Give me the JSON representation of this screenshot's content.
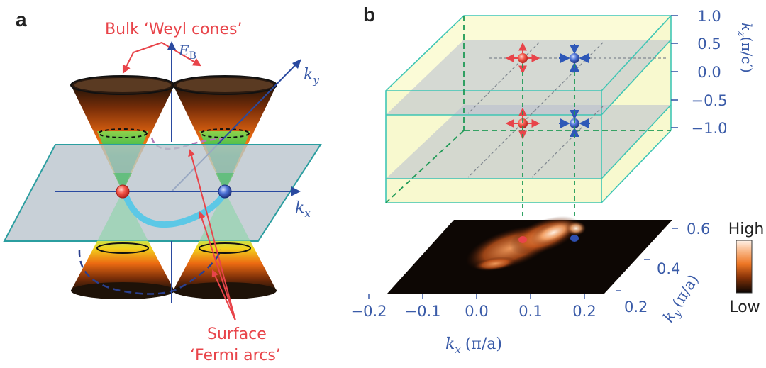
{
  "panels": {
    "a": {
      "label": "a",
      "bulk_label": "Bulk ‘Weyl cones’",
      "energy_axis": {
        "symbol": "E",
        "subscript": "B"
      },
      "ky_axis": {
        "symbol": "k",
        "subscript": "y"
      },
      "kx_axis": {
        "symbol": "k",
        "subscript": "x"
      },
      "surface_label_line1": "Surface",
      "surface_label_line2": "‘Fermi arcs’"
    },
    "b": {
      "label": "b",
      "kz_axis": {
        "title": "k",
        "subscript": "z",
        "unit": "(π/c′)",
        "ticks": [
          "1.0",
          "0.5",
          "0.0",
          "−0.5",
          "−1.0"
        ]
      },
      "kx_axis": {
        "title": "k",
        "subscript": "x",
        "unit": "(π/a)",
        "ticks": [
          "−0.2",
          "−0.1",
          "0.0",
          "0.1",
          "0.2"
        ]
      },
      "ky_axis": {
        "title": "k",
        "subscript": "y",
        "unit": "(π/a)",
        "ticks": [
          "0.6",
          "0.4",
          "0.2"
        ]
      },
      "colorbar": {
        "high": "High",
        "low": "Low"
      }
    }
  },
  "colors": {
    "red_accent": "#e8444a",
    "blue_accent": "#3a5ba8",
    "fermi_arc": "#5cc8e6",
    "plane_fill": "#b9c3cc",
    "plane_edge": "#2b9ea0",
    "box_edge": "#3fc6b4",
    "box_fill": "#f6f7bf",
    "green_dash": "#1f9a56"
  }
}
